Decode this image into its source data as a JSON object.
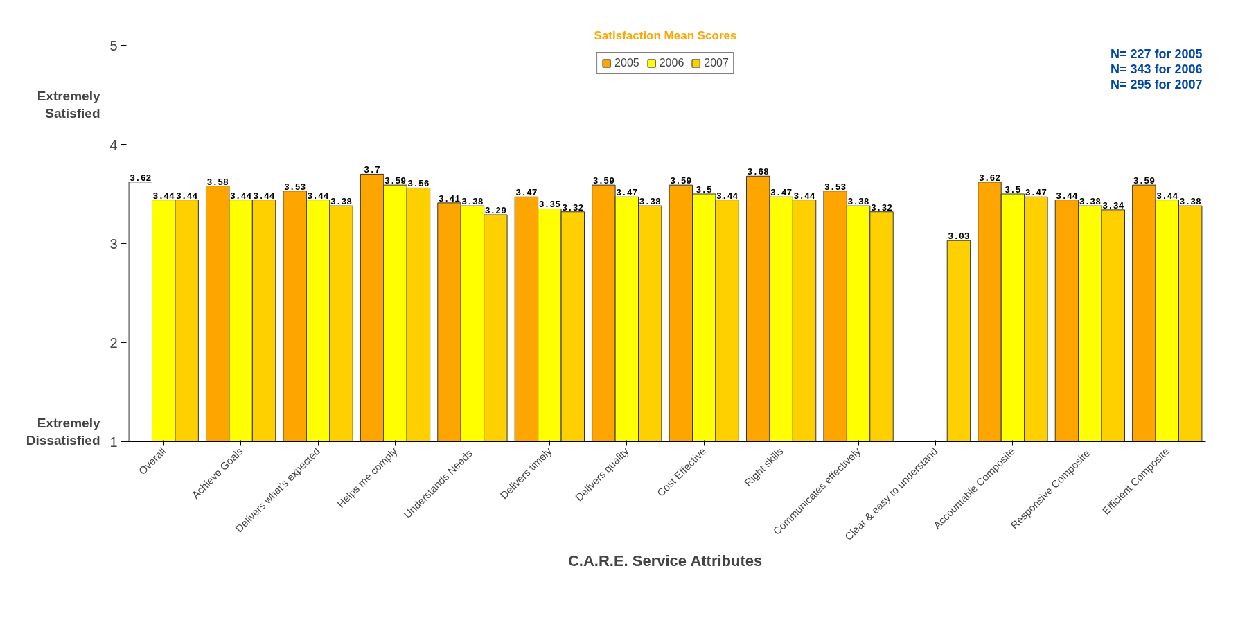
{
  "chart_data": {
    "type": "bar",
    "title": "Satisfaction Mean Scores",
    "xlabel": "C.A.R.E. Service Attributes",
    "categories": [
      "Overall",
      "Achieve Goals",
      "Delivers what's expected",
      "Helps me comply",
      "Understands  Needs",
      "Delivers timely",
      "Delivers quality",
      "Cost Effective",
      "Right skills",
      "Communicates effectively",
      "Clear & easy to understand",
      "Accountable Composite",
      "Responsive  Composite",
      "Efficient Composite"
    ],
    "series": [
      {
        "name": "2005",
        "color": "#ffa500",
        "colors": [
          "#ffffff",
          "#ffa500",
          "#ffa500",
          "#ffa500",
          "#ffa500",
          "#ffa500",
          "#ffa500",
          "#ffa500",
          "#ffa500",
          "#ffa500",
          "#ffa500",
          "#ffa500",
          "#ffa500",
          "#ffa500"
        ],
        "values": [
          3.62,
          3.58,
          3.53,
          3.7,
          3.41,
          3.47,
          3.59,
          3.59,
          3.68,
          3.53,
          null,
          3.62,
          3.44,
          3.59
        ]
      },
      {
        "name": "2006",
        "color": "#ffff00",
        "values": [
          3.44,
          3.44,
          3.44,
          3.59,
          3.38,
          3.35,
          3.47,
          3.5,
          3.47,
          3.38,
          null,
          3.5,
          3.38,
          3.44
        ]
      },
      {
        "name": "2007",
        "color": "#ffd000",
        "values": [
          3.44,
          3.44,
          3.38,
          3.56,
          3.29,
          3.32,
          3.38,
          3.44,
          3.44,
          3.32,
          3.03,
          3.47,
          3.34,
          3.38
        ]
      }
    ],
    "ylim": [
      1,
      5
    ],
    "yticks": [
      1,
      2,
      3,
      4,
      5
    ],
    "grid": false,
    "legend": "top",
    "data_labels": true,
    "annotations": [
      "Extremely Satisfied",
      "Extremely Dissatisfied",
      "N= 227 for 2005",
      "N= 343 for 2006",
      "N= 295 for 2007"
    ]
  }
}
